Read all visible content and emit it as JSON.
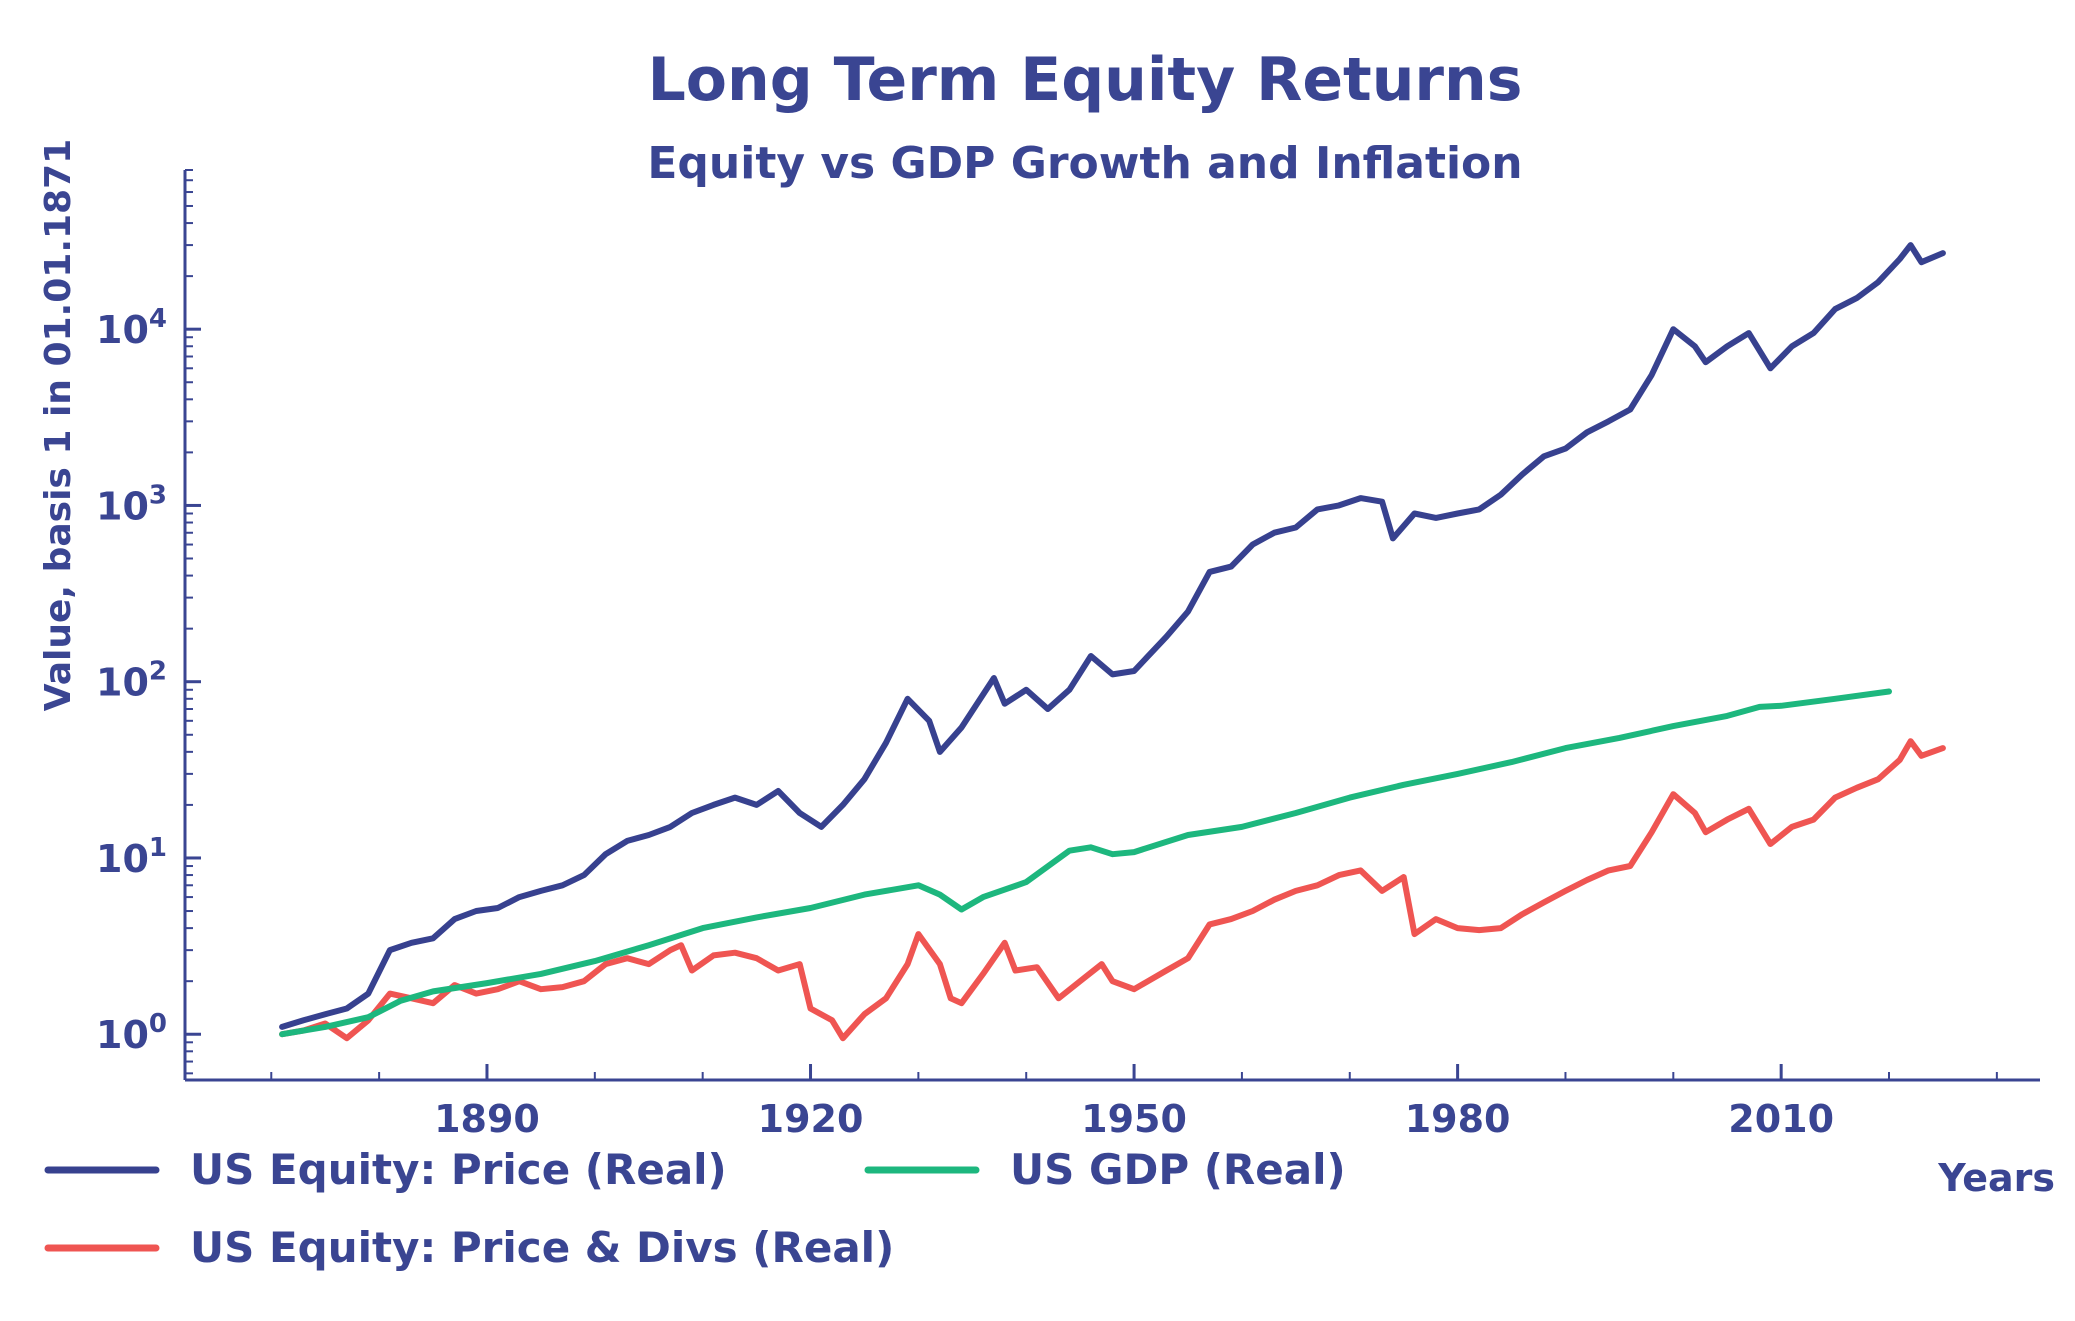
{
  "chart_data": {
    "type": "line",
    "title": "Long Term Equity Returns",
    "subtitle": "Equity vs GDP Growth and Inflation",
    "xlabel": "Years",
    "ylabel": "Value, basis 1 in 01.01.1871",
    "yscale": "log",
    "xlim": [
      1862,
      2034
    ],
    "ylim": [
      0.55,
      80000
    ],
    "x_ticks": [
      1890,
      1920,
      1950,
      1980,
      2010
    ],
    "y_ticks": [
      {
        "value": 1,
        "base": "10",
        "exp": "0"
      },
      {
        "value": 10,
        "base": "10",
        "exp": "1"
      },
      {
        "value": 100,
        "base": "10",
        "exp": "2"
      },
      {
        "value": 1000,
        "base": "10",
        "exp": "3"
      },
      {
        "value": 10000,
        "base": "10",
        "exp": "4"
      }
    ],
    "grid": false,
    "legend_position": "bottom",
    "colors": {
      "axis": "#3a4592",
      "text": "#3a4592"
    },
    "series": [
      {
        "name": "US Equity: Price (Real)",
        "color": "#37418f",
        "points": [
          [
            1871,
            1.1
          ],
          [
            1873,
            1.2
          ],
          [
            1875,
            1.3
          ],
          [
            1877,
            1.4
          ],
          [
            1879,
            1.7
          ],
          [
            1881,
            3.0
          ],
          [
            1883,
            3.3
          ],
          [
            1885,
            3.5
          ],
          [
            1887,
            4.5
          ],
          [
            1889,
            5.0
          ],
          [
            1891,
            5.2
          ],
          [
            1893,
            6.0
          ],
          [
            1895,
            6.5
          ],
          [
            1897,
            7.0
          ],
          [
            1899,
            8.0
          ],
          [
            1901,
            10.5
          ],
          [
            1903,
            12.5
          ],
          [
            1905,
            13.5
          ],
          [
            1907,
            15.0
          ],
          [
            1909,
            18.0
          ],
          [
            1911,
            20.0
          ],
          [
            1913,
            22.0
          ],
          [
            1915,
            20.0
          ],
          [
            1917,
            24.0
          ],
          [
            1919,
            18.0
          ],
          [
            1921,
            15.0
          ],
          [
            1923,
            20.0
          ],
          [
            1925,
            28.0
          ],
          [
            1927,
            45.0
          ],
          [
            1929,
            80.0
          ],
          [
            1931,
            60.0
          ],
          [
            1932,
            40.0
          ],
          [
            1934,
            55.0
          ],
          [
            1937,
            105.0
          ],
          [
            1938,
            75.0
          ],
          [
            1940,
            90.0
          ],
          [
            1942,
            70.0
          ],
          [
            1944,
            90.0
          ],
          [
            1946,
            140.0
          ],
          [
            1948,
            110.0
          ],
          [
            1950,
            115.0
          ],
          [
            1953,
            180.0
          ],
          [
            1955,
            250.0
          ],
          [
            1957,
            420.0
          ],
          [
            1959,
            450.0
          ],
          [
            1961,
            600.0
          ],
          [
            1963,
            700.0
          ],
          [
            1965,
            750.0
          ],
          [
            1967,
            950.0
          ],
          [
            1969,
            1000.0
          ],
          [
            1971,
            1100.0
          ],
          [
            1973,
            1050.0
          ],
          [
            1974,
            650.0
          ],
          [
            1976,
            900.0
          ],
          [
            1978,
            850.0
          ],
          [
            1980,
            900.0
          ],
          [
            1982,
            950.0
          ],
          [
            1984,
            1150.0
          ],
          [
            1986,
            1500.0
          ],
          [
            1988,
            1900.0
          ],
          [
            1990,
            2100.0
          ],
          [
            1992,
            2600.0
          ],
          [
            1994,
            3000.0
          ],
          [
            1996,
            3500.0
          ],
          [
            1998,
            5500.0
          ],
          [
            2000,
            10000.0
          ],
          [
            2002,
            8000.0
          ],
          [
            2003,
            6500.0
          ],
          [
            2005,
            8000.0
          ],
          [
            2007,
            9500.0
          ],
          [
            2009,
            6000.0
          ],
          [
            2011,
            8000.0
          ],
          [
            2013,
            9500.0
          ],
          [
            2015,
            13000.0
          ],
          [
            2017,
            15000.0
          ],
          [
            2019,
            18500.0
          ],
          [
            2021,
            25000.0
          ],
          [
            2022,
            30000.0
          ],
          [
            2023,
            24000.0
          ],
          [
            2025,
            27000.0
          ]
        ]
      },
      {
        "name": "US GDP (Real)",
        "color": "#1db77e",
        "points": [
          [
            1871,
            1.0
          ],
          [
            1875,
            1.1
          ],
          [
            1879,
            1.25
          ],
          [
            1882,
            1.55
          ],
          [
            1885,
            1.75
          ],
          [
            1890,
            1.95
          ],
          [
            1895,
            2.2
          ],
          [
            1900,
            2.6
          ],
          [
            1905,
            3.2
          ],
          [
            1910,
            4.0
          ],
          [
            1915,
            4.6
          ],
          [
            1920,
            5.2
          ],
          [
            1925,
            6.2
          ],
          [
            1930,
            7.0
          ],
          [
            1932,
            6.2
          ],
          [
            1934,
            5.1
          ],
          [
            1936,
            6.0
          ],
          [
            1940,
            7.3
          ],
          [
            1944,
            11.0
          ],
          [
            1946,
            11.5
          ],
          [
            1948,
            10.5
          ],
          [
            1950,
            10.8
          ],
          [
            1955,
            13.5
          ],
          [
            1960,
            15.0
          ],
          [
            1965,
            18.0
          ],
          [
            1970,
            22.0
          ],
          [
            1975,
            26.0
          ],
          [
            1980,
            30.0
          ],
          [
            1985,
            35.0
          ],
          [
            1990,
            42.0
          ],
          [
            1995,
            48.0
          ],
          [
            2000,
            56.0
          ],
          [
            2005,
            64.0
          ],
          [
            2008,
            72.0
          ],
          [
            2010,
            73.0
          ],
          [
            2015,
            80.0
          ],
          [
            2020,
            88.0
          ]
        ]
      },
      {
        "name": "US Equity: Price & Divs (Real)",
        "color": "#ef5552",
        "points": [
          [
            1871,
            1.0
          ],
          [
            1873,
            1.05
          ],
          [
            1875,
            1.15
          ],
          [
            1877,
            0.95
          ],
          [
            1879,
            1.2
          ],
          [
            1881,
            1.7
          ],
          [
            1883,
            1.6
          ],
          [
            1885,
            1.5
          ],
          [
            1887,
            1.9
          ],
          [
            1889,
            1.7
          ],
          [
            1891,
            1.8
          ],
          [
            1893,
            2.0
          ],
          [
            1895,
            1.8
          ],
          [
            1897,
            1.85
          ],
          [
            1899,
            2.0
          ],
          [
            1901,
            2.5
          ],
          [
            1903,
            2.7
          ],
          [
            1905,
            2.5
          ],
          [
            1907,
            3.0
          ],
          [
            1908,
            3.2
          ],
          [
            1909,
            2.3
          ],
          [
            1911,
            2.8
          ],
          [
            1913,
            2.9
          ],
          [
            1915,
            2.7
          ],
          [
            1917,
            2.3
          ],
          [
            1919,
            2.5
          ],
          [
            1920,
            1.4
          ],
          [
            1922,
            1.2
          ],
          [
            1923,
            0.95
          ],
          [
            1925,
            1.3
          ],
          [
            1927,
            1.6
          ],
          [
            1929,
            2.5
          ],
          [
            1930,
            3.7
          ],
          [
            1932,
            2.5
          ],
          [
            1933,
            1.6
          ],
          [
            1934,
            1.5
          ],
          [
            1936,
            2.2
          ],
          [
            1938,
            3.3
          ],
          [
            1939,
            2.3
          ],
          [
            1941,
            2.4
          ],
          [
            1943,
            1.6
          ],
          [
            1945,
            2.0
          ],
          [
            1947,
            2.5
          ],
          [
            1948,
            2.0
          ],
          [
            1950,
            1.8
          ],
          [
            1953,
            2.3
          ],
          [
            1955,
            2.7
          ],
          [
            1957,
            4.2
          ],
          [
            1959,
            4.5
          ],
          [
            1961,
            5.0
          ],
          [
            1963,
            5.8
          ],
          [
            1965,
            6.5
          ],
          [
            1967,
            7.0
          ],
          [
            1969,
            8.0
          ],
          [
            1971,
            8.5
          ],
          [
            1973,
            6.5
          ],
          [
            1975,
            7.8
          ],
          [
            1976,
            3.7
          ],
          [
            1978,
            4.5
          ],
          [
            1980,
            4.0
          ],
          [
            1982,
            3.9
          ],
          [
            1984,
            4.0
          ],
          [
            1986,
            4.8
          ],
          [
            1988,
            5.6
          ],
          [
            1990,
            6.5
          ],
          [
            1992,
            7.5
          ],
          [
            1994,
            8.5
          ],
          [
            1996,
            9.0
          ],
          [
            1998,
            14.0
          ],
          [
            2000,
            23.0
          ],
          [
            2002,
            18.0
          ],
          [
            2003,
            14.0
          ],
          [
            2005,
            16.5
          ],
          [
            2007,
            19.0
          ],
          [
            2009,
            12.0
          ],
          [
            2011,
            15.0
          ],
          [
            2013,
            16.5
          ],
          [
            2015,
            22.0
          ],
          [
            2017,
            25.0
          ],
          [
            2019,
            28.0
          ],
          [
            2021,
            36.0
          ],
          [
            2022,
            46.0
          ],
          [
            2023,
            38.0
          ],
          [
            2025,
            42.0
          ]
        ]
      }
    ]
  }
}
